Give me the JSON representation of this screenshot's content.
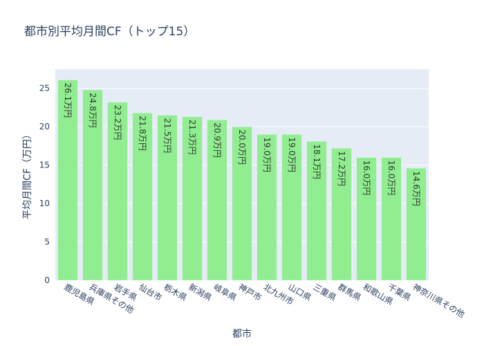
{
  "chart_data": {
    "type": "bar",
    "title": "都市別平均月間CF（トップ15）",
    "xlabel": "都市",
    "ylabel": "平均月間CF（万円）",
    "ylim": [
      0,
      27.5
    ],
    "yticks": [
      0,
      5,
      10,
      15,
      20,
      25
    ],
    "grid": true,
    "bar_color": "#90ee90",
    "plot_bg": "#e5ecf6",
    "categories": [
      "鹿児島県",
      "兵庫県その他",
      "岩手県",
      "仙台市",
      "栃木県",
      "新潟県",
      "岐阜県",
      "神戸市",
      "北九州市",
      "山口県",
      "三重県",
      "群馬県",
      "和歌山県",
      "千葉県",
      "神奈川県その他"
    ],
    "values": [
      26.1,
      24.8,
      23.2,
      21.8,
      21.5,
      21.3,
      20.9,
      20.0,
      19.0,
      19.0,
      18.1,
      17.2,
      16.0,
      16.0,
      14.6
    ],
    "data_labels": [
      "26.1万円",
      "24.8万円",
      "23.2万円",
      "21.8万円",
      "21.5万円",
      "21.3万円",
      "20.9万円",
      "20.0万円",
      "19.0万円",
      "19.0万円",
      "18.1万円",
      "17.2万円",
      "16.0万円",
      "16.0万円",
      "14.6万円"
    ]
  }
}
